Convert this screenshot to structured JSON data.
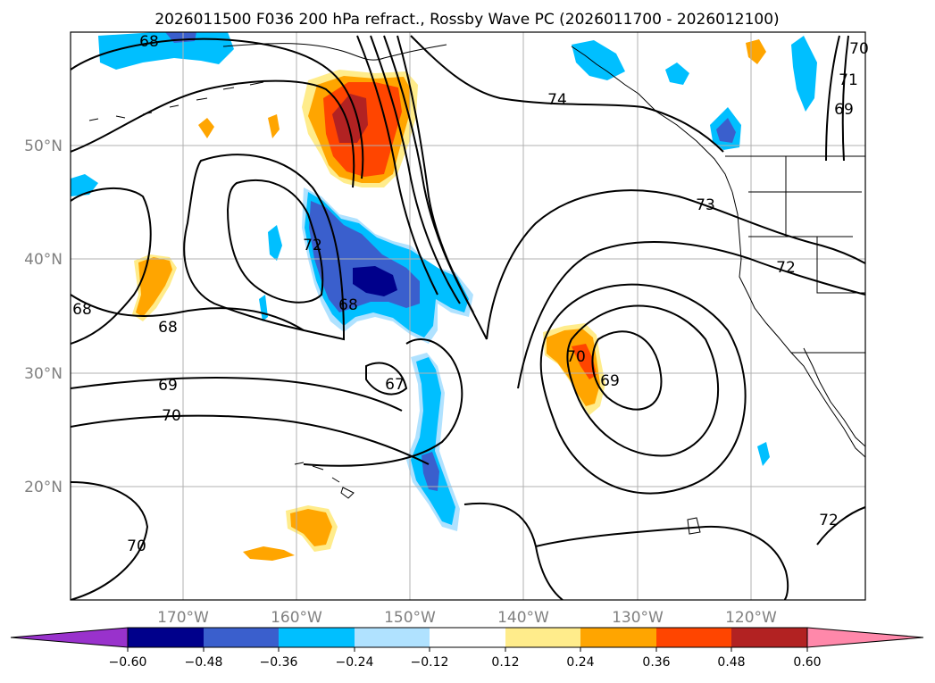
{
  "figure": {
    "title": "2026011500 F036 200 hPa refract., Rossby Wave PC (2026011700 - 2026012100)"
  },
  "map": {
    "lon_labels": [
      "170°W",
      "160°W",
      "150°W",
      "140°W",
      "130°W",
      "120°W"
    ],
    "lat_labels": [
      "50°N",
      "40°N",
      "30°N",
      "20°N"
    ],
    "contour_labels": [
      "68",
      "74",
      "73",
      "72",
      "71",
      "70",
      "69",
      "68",
      "68",
      "68",
      "67",
      "70",
      "69",
      "69",
      "70",
      "70",
      "72",
      "72"
    ],
    "colors": {
      "coast": "#000000",
      "grid": "#b0b0b0",
      "contour": "#000000"
    }
  },
  "colorbar": {
    "ticks": [
      "−0.60",
      "−0.48",
      "−0.36",
      "−0.24",
      "−0.12",
      "0.12",
      "0.24",
      "0.36",
      "0.48",
      "0.60"
    ],
    "colors": [
      "#9932cc",
      "#00008b",
      "#3a5fcd",
      "#00bfff",
      "#b0e2ff",
      "#ffffff",
      "#ffec8b",
      "#ffa500",
      "#ff4500",
      "#b22222",
      "#ff88aa"
    ]
  }
}
